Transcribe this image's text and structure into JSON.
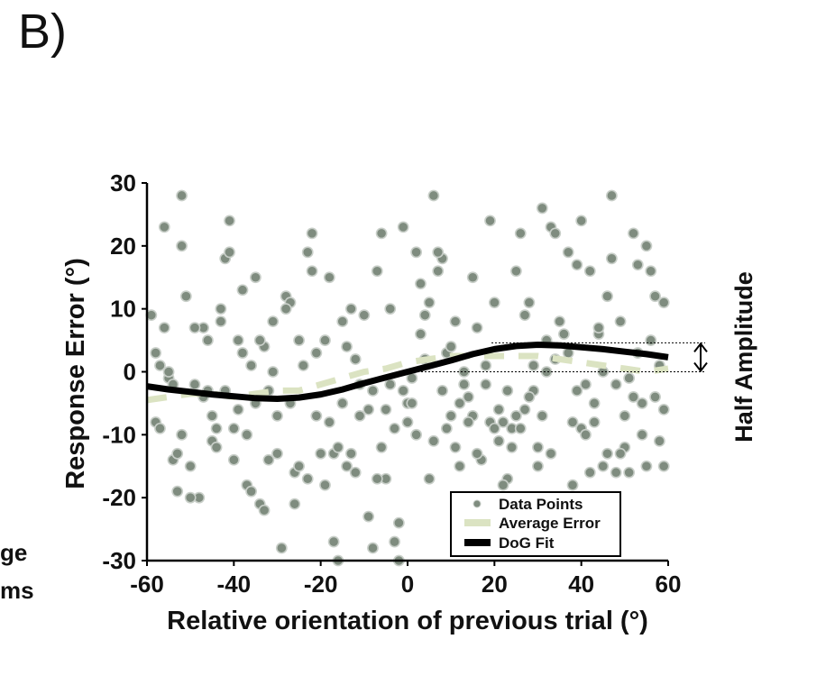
{
  "panel_label": "B)",
  "cropped_text": [
    "ge",
    "ms"
  ],
  "chart_data": {
    "type": "scatter",
    "xlabel": "Relative orientation of previous trial (°)",
    "ylabel": "Response Error (°)",
    "xlim": [
      -60,
      60
    ],
    "ylim": [
      -30,
      30
    ],
    "xticks": [
      -60,
      -40,
      -20,
      0,
      20,
      40,
      60
    ],
    "yticks": [
      30,
      20,
      10,
      0,
      -10,
      -20,
      -30
    ],
    "legend_position": "bottom-right",
    "annotation": "Half Amplitude",
    "colors": {
      "points": "#7f8c7f",
      "point_edge": "#c9cfc9",
      "average": "#dbe3c2",
      "fit": "#000000"
    },
    "series": [
      {
        "name": "Data Points",
        "kind": "scatter",
        "points": [
          [
            -59,
            9
          ],
          [
            -58,
            -8
          ],
          [
            -57,
            -9
          ],
          [
            -56,
            23
          ],
          [
            -56,
            7
          ],
          [
            -55,
            -1
          ],
          [
            -54,
            -14
          ],
          [
            -53,
            -13
          ],
          [
            -52,
            20
          ],
          [
            -52,
            28
          ],
          [
            -51,
            12
          ],
          [
            -50,
            -15
          ],
          [
            -49,
            -2
          ],
          [
            -48,
            -20
          ],
          [
            -47,
            7
          ],
          [
            -46,
            5
          ],
          [
            -45,
            -11
          ],
          [
            -44,
            -12
          ],
          [
            -43,
            10
          ],
          [
            -42,
            18
          ],
          [
            -41,
            24
          ],
          [
            -41,
            19
          ],
          [
            -40,
            -9
          ],
          [
            -39,
            5
          ],
          [
            -38,
            13
          ],
          [
            -37,
            -18
          ],
          [
            -36,
            -19
          ],
          [
            -36,
            1
          ],
          [
            -35,
            15
          ],
          [
            -34,
            -21
          ],
          [
            -33,
            -22
          ],
          [
            -32,
            -14
          ],
          [
            -31,
            0
          ],
          [
            -30,
            -7
          ],
          [
            -29,
            -28
          ],
          [
            -28,
            12
          ],
          [
            -27,
            11
          ],
          [
            -26,
            -21
          ],
          [
            -25,
            5
          ],
          [
            -24,
            1
          ],
          [
            -23,
            19
          ],
          [
            -22,
            22
          ],
          [
            -21,
            -7
          ],
          [
            -20,
            -13
          ],
          [
            -19,
            5
          ],
          [
            -18,
            15
          ],
          [
            -17,
            -13
          ],
          [
            -16,
            -30
          ],
          [
            -15,
            8
          ],
          [
            -14,
            -15
          ],
          [
            -13,
            10
          ],
          [
            -12,
            -16
          ],
          [
            -11,
            -2
          ],
          [
            -10,
            9
          ],
          [
            -9,
            -23
          ],
          [
            -8,
            -28
          ],
          [
            -7,
            16
          ],
          [
            -6,
            -12
          ],
          [
            -5,
            -17
          ],
          [
            -4,
            10
          ],
          [
            -3,
            -27
          ],
          [
            -2,
            -30
          ],
          [
            -1,
            -3
          ],
          [
            0,
            -5
          ],
          [
            1,
            -5
          ],
          [
            2,
            -10
          ],
          [
            3,
            14
          ],
          [
            4,
            2
          ],
          [
            5,
            -17
          ],
          [
            6,
            -11
          ],
          [
            7,
            16
          ],
          [
            8,
            18
          ],
          [
            9,
            3
          ],
          [
            10,
            -7
          ],
          [
            11,
            8
          ],
          [
            12,
            -15
          ],
          [
            13,
            0
          ],
          [
            14,
            -4
          ],
          [
            15,
            -7
          ],
          [
            16,
            7
          ],
          [
            17,
            -27
          ],
          [
            18,
            1
          ],
          [
            19,
            -8
          ],
          [
            20,
            11
          ],
          [
            21,
            -6
          ],
          [
            22,
            -8
          ],
          [
            23,
            -17
          ],
          [
            24,
            -9
          ],
          [
            25,
            -7
          ],
          [
            26,
            -9
          ],
          [
            27,
            9
          ],
          [
            28,
            11
          ],
          [
            29,
            -3
          ],
          [
            30,
            -15
          ],
          [
            31,
            -7
          ],
          [
            32,
            0
          ],
          [
            33,
            23
          ],
          [
            34,
            22
          ],
          [
            35,
            -20
          ],
          [
            36,
            -25
          ],
          [
            37,
            19
          ],
          [
            38,
            -8
          ],
          [
            39,
            -3
          ],
          [
            40,
            -9
          ],
          [
            41,
            -10
          ],
          [
            42,
            -16
          ],
          [
            43,
            -8
          ],
          [
            44,
            6
          ],
          [
            45,
            -15
          ],
          [
            46,
            12
          ],
          [
            47,
            28
          ],
          [
            48,
            -16
          ],
          [
            49,
            8
          ],
          [
            50,
            -12
          ],
          [
            51,
            -1
          ],
          [
            52,
            22
          ],
          [
            53,
            3
          ],
          [
            54,
            -10
          ],
          [
            55,
            -15
          ],
          [
            56,
            5
          ],
          [
            57,
            12
          ],
          [
            58,
            1
          ],
          [
            59,
            -15
          ],
          [
            -58,
            3
          ],
          [
            -55,
            0
          ],
          [
            -53,
            -19
          ],
          [
            -50,
            -20
          ],
          [
            -47,
            -4
          ],
          [
            -45,
            -7
          ],
          [
            -43,
            8
          ],
          [
            -40,
            -14
          ],
          [
            -38,
            3
          ],
          [
            -35,
            -5
          ],
          [
            -33,
            4
          ],
          [
            -31,
            8
          ],
          [
            -28,
            10
          ],
          [
            -26,
            -16
          ],
          [
            -23,
            -17
          ],
          [
            -21,
            3
          ],
          [
            -18,
            -8
          ],
          [
            -16,
            -12
          ],
          [
            -14,
            4
          ],
          [
            -12,
            2
          ],
          [
            -9,
            -6
          ],
          [
            -7,
            -17
          ],
          [
            -5,
            -6
          ],
          [
            -3,
            -9
          ],
          [
            -1,
            23
          ],
          [
            1,
            -1
          ],
          [
            3,
            6
          ],
          [
            5,
            11
          ],
          [
            7,
            19
          ],
          [
            9,
            -9
          ],
          [
            11,
            -12
          ],
          [
            13,
            -2
          ],
          [
            15,
            15
          ],
          [
            17,
            -14
          ],
          [
            19,
            24
          ],
          [
            21,
            -11
          ],
          [
            23,
            -3
          ],
          [
            25,
            16
          ],
          [
            27,
            -6
          ],
          [
            29,
            1
          ],
          [
            31,
            26
          ],
          [
            33,
            -13
          ],
          [
            35,
            8
          ],
          [
            37,
            3
          ],
          [
            39,
            17
          ],
          [
            41,
            -2
          ],
          [
            43,
            -5
          ],
          [
            45,
            0
          ],
          [
            47,
            18
          ],
          [
            49,
            -13
          ],
          [
            51,
            -16
          ],
          [
            53,
            17
          ],
          [
            55,
            20
          ],
          [
            57,
            -4
          ],
          [
            59,
            -6
          ],
          [
            -57,
            1
          ],
          [
            -54,
            -2
          ],
          [
            -52,
            -10
          ],
          [
            -49,
            7
          ],
          [
            -46,
            -3
          ],
          [
            -44,
            -9
          ],
          [
            -42,
            -3
          ],
          [
            -39,
            -6
          ],
          [
            -37,
            -10
          ],
          [
            -34,
            5
          ],
          [
            -32,
            -3
          ],
          [
            -30,
            -13
          ],
          [
            -27,
            -5
          ],
          [
            -25,
            -15
          ],
          [
            -22,
            16
          ],
          [
            -19,
            -18
          ],
          [
            -17,
            -27
          ],
          [
            -15,
            -5
          ],
          [
            -13,
            -13
          ],
          [
            -11,
            -7
          ],
          [
            -8,
            -3
          ],
          [
            -6,
            22
          ],
          [
            -4,
            -2
          ],
          [
            -2,
            -24
          ],
          [
            0,
            -8
          ],
          [
            2,
            19
          ],
          [
            4,
            9
          ],
          [
            6,
            28
          ],
          [
            8,
            -3
          ],
          [
            10,
            4
          ],
          [
            12,
            -5
          ],
          [
            14,
            -8
          ],
          [
            16,
            -13
          ],
          [
            18,
            -2
          ],
          [
            20,
            -9
          ],
          [
            22,
            -18
          ],
          [
            24,
            -12
          ],
          [
            26,
            22
          ],
          [
            28,
            -4
          ],
          [
            30,
            -12
          ],
          [
            32,
            5
          ],
          [
            34,
            2
          ],
          [
            36,
            6
          ],
          [
            38,
            -18
          ],
          [
            40,
            24
          ],
          [
            42,
            16
          ],
          [
            44,
            7
          ],
          [
            46,
            -13
          ],
          [
            48,
            -2
          ],
          [
            50,
            -7
          ],
          [
            52,
            -4
          ],
          [
            54,
            -5
          ],
          [
            56,
            16
          ],
          [
            58,
            -11
          ],
          [
            59,
            11
          ]
        ]
      },
      {
        "name": "Average Error",
        "kind": "dashed-line",
        "x": [
          -60,
          -55,
          -50,
          -45,
          -40,
          -35,
          -30,
          -25,
          -20,
          -15,
          -10,
          -5,
          0,
          5,
          10,
          15,
          20,
          25,
          30,
          35,
          40,
          45,
          50,
          55,
          60
        ],
        "y": [
          -4.5,
          -4,
          -3.5,
          -3.5,
          -4,
          -3.5,
          -3,
          -3,
          -2,
          -1,
          0,
          0.5,
          1.5,
          2,
          2.5,
          2.5,
          2.5,
          2.5,
          2.5,
          2,
          1.5,
          1,
          0.5,
          0,
          0.5
        ]
      },
      {
        "name": "DoG Fit",
        "kind": "line",
        "x": [
          -60,
          -55,
          -50,
          -45,
          -40,
          -35,
          -30,
          -25,
          -20,
          -15,
          -10,
          -5,
          0,
          5,
          10,
          15,
          20,
          25,
          30,
          35,
          40,
          45,
          50,
          55,
          60
        ],
        "y": [
          -2.3,
          -2.8,
          -3.2,
          -3.6,
          -3.9,
          -4.2,
          -4.3,
          -4.1,
          -3.6,
          -2.8,
          -1.8,
          -0.9,
          0,
          0.9,
          1.8,
          2.8,
          3.6,
          4.1,
          4.3,
          4.2,
          3.9,
          3.6,
          3.2,
          2.8,
          2.3
        ]
      }
    ]
  }
}
